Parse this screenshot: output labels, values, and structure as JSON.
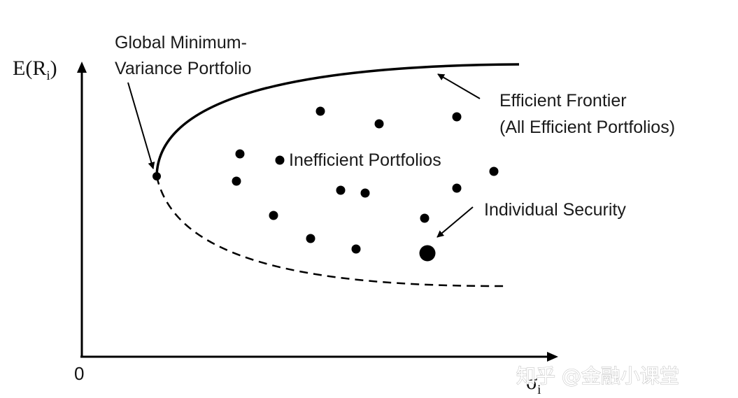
{
  "axes": {
    "y_label_main": "E(R",
    "y_label_sub": "i",
    "y_label_close": ")",
    "x_label_main": "σ",
    "x_label_sub": "i",
    "origin_label": "0"
  },
  "labels": {
    "gmv_line1": "Global Minimum-",
    "gmv_line2": "Variance Portfolio",
    "frontier_line1": "Efficient Frontier",
    "frontier_line2": "(All Efficient Portfolios)",
    "inefficient": "Inefficient Portfolios",
    "individual": "Individual Security"
  },
  "watermark": "知乎 @金融小课堂",
  "colors": {
    "ink": "#000000",
    "text": "#1a1a1a",
    "background": "#ffffff"
  }
}
